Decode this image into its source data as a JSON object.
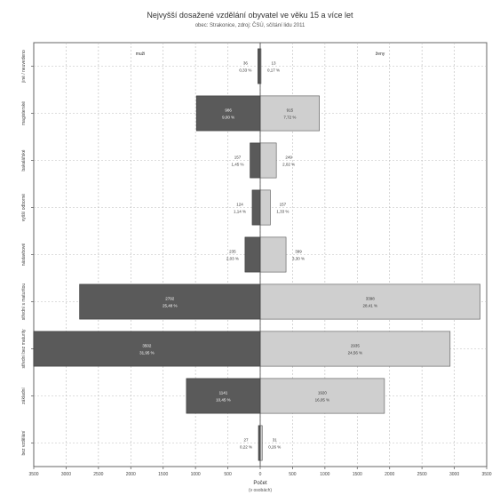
{
  "chart_data": {
    "type": "bar",
    "orientation": "horizontal",
    "title": "Nejvyšší dosažené vzdělání obyvatel ve věku 15 a více let",
    "subtitle": "obec: Strakonice, zdroj: ČSÚ, sčítání lidu 2011",
    "xlabel": "Počet",
    "xlabel_sub": "(v osobách)",
    "ylabel": "",
    "xlim": [
      -3500,
      3500
    ],
    "x_ticks": [
      "3500",
      "3000",
      "2500",
      "2000",
      "1500",
      "1000",
      "500",
      "0",
      "500",
      "1000",
      "1500",
      "2000",
      "2500",
      "3000",
      "3500"
    ],
    "categories": [
      "bez vzdělání",
      "základní",
      "střední bez maturity",
      "střední s maturitou",
      "nástavbové",
      "vyšší odborné",
      "bakalářské",
      "magisterské",
      "jiné / neuvedeno"
    ],
    "series": [
      {
        "name": "muži",
        "color": "#5a5a5a",
        "values": [
          27,
          1141,
          3502,
          2792,
          235,
          124,
          157,
          986,
          36
        ],
        "labels": [
          "0,22 %",
          "10,45 %",
          "31,95 %",
          "25,48 %",
          "2,03 %",
          "1,14 %",
          "1,45 %",
          "9,00 %",
          "0,33 %"
        ]
      },
      {
        "name": "ženy",
        "color": "#cfcfcf",
        "values": [
          31,
          1920,
          2935,
          3398,
          399,
          157,
          249,
          915,
          13
        ],
        "labels": [
          "0,26 %",
          "16,05 %",
          "24,56 %",
          "28,41 %",
          "3,30 %",
          "1,33 %",
          "2,02 %",
          "7,72 %",
          "0,17 %"
        ]
      }
    ],
    "legend": "in-plot-top",
    "grid": true
  }
}
